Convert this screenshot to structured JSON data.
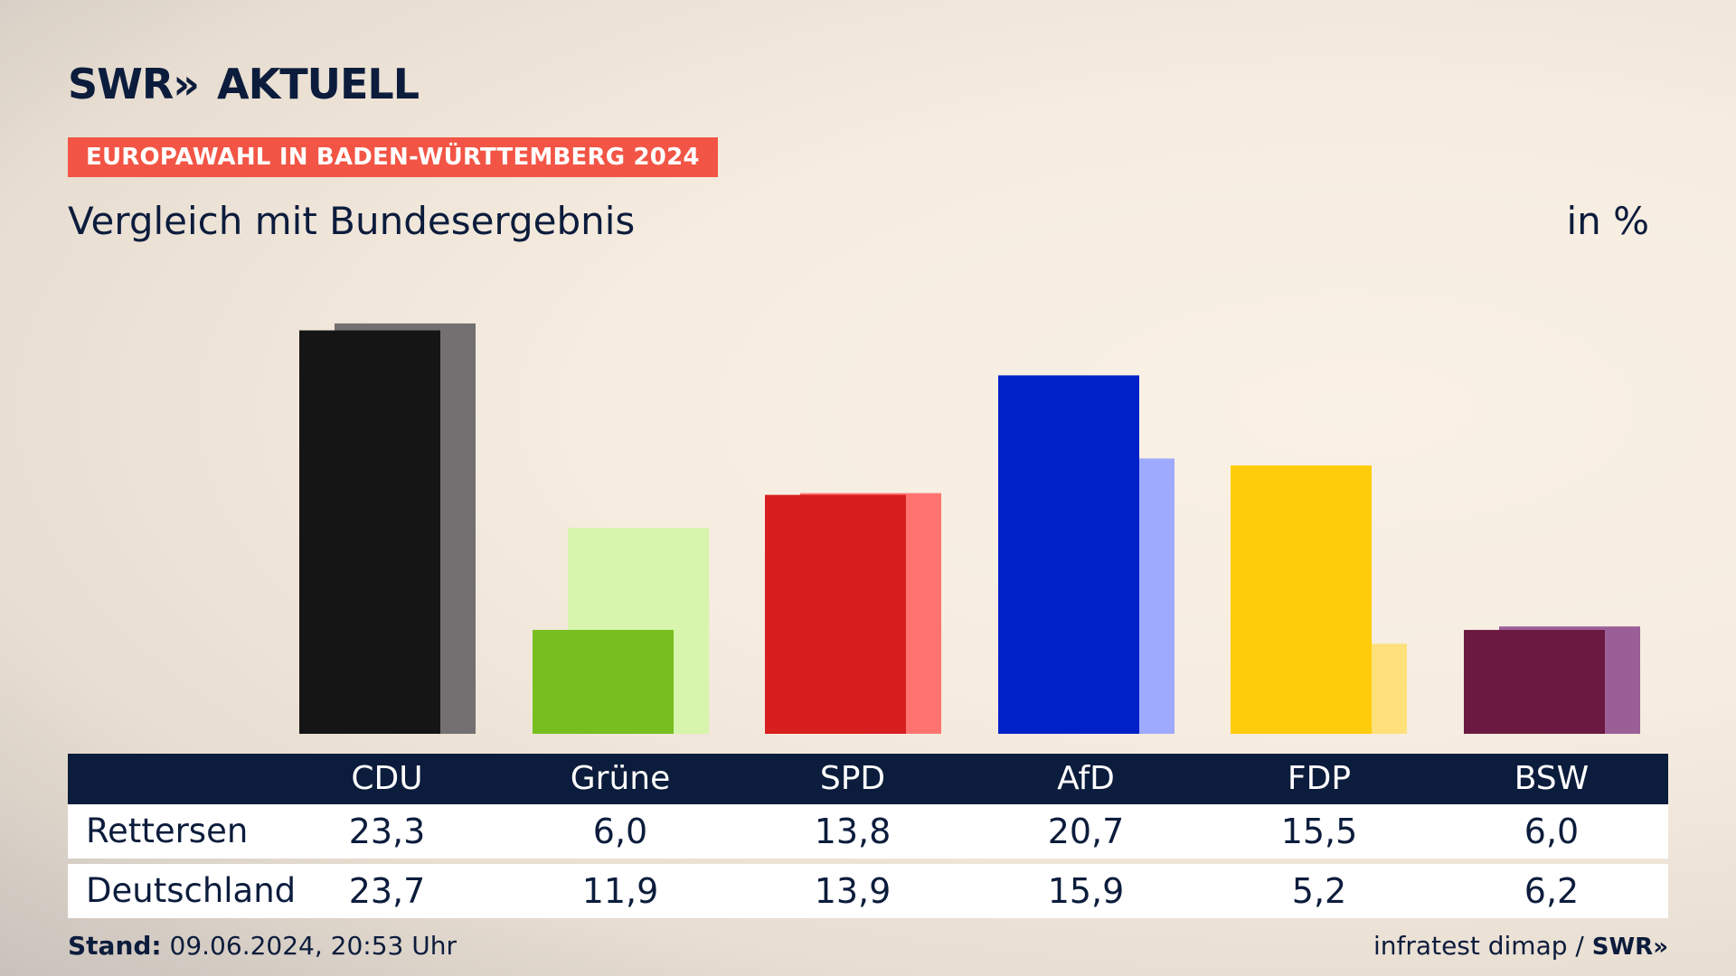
{
  "header": {
    "logo": "SWR» AKTUELL",
    "logo_parts": {
      "swr": "SWR",
      "chevrons": "»",
      "aktuell": "AKTUELL"
    },
    "kicker": "EUROPAWAHL IN BADEN-WÜRTTEMBERG 2024",
    "subtitle": "Vergleich mit Bundesergebnis",
    "unit": "in %"
  },
  "chart_data": {
    "type": "bar",
    "title": "Vergleich mit Bundesergebnis",
    "categories": [
      "CDU",
      "Grüne",
      "SPD",
      "AfD",
      "FDP",
      "BSW"
    ],
    "series": [
      {
        "name": "Rettersen",
        "values": [
          23.3,
          6.0,
          13.8,
          20.7,
          15.5,
          6.0
        ],
        "colors": [
          "#151515",
          "#78be1e",
          "#d81e1e",
          "#0021c8",
          "#ffcc0b",
          "#6a1a40"
        ]
      },
      {
        "name": "Deutschland",
        "values": [
          23.7,
          11.9,
          13.9,
          15.9,
          5.2,
          6.2
        ],
        "colors": [
          "#727070",
          "#d7f5ac",
          "#ff7470",
          "#9eaafd",
          "#ffe07a",
          "#9b5f98"
        ]
      }
    ],
    "ylim": [
      0,
      25
    ],
    "grid": false,
    "legend": "none"
  },
  "table": {
    "columns": [
      "CDU",
      "Grüne",
      "SPD",
      "AfD",
      "FDP",
      "BSW"
    ],
    "rows": [
      {
        "label": "Rettersen",
        "values": [
          "23,3",
          "6,0",
          "13,8",
          "20,7",
          "15,5",
          "6,0"
        ]
      },
      {
        "label": "Deutschland",
        "values": [
          "23,7",
          "11,9",
          "13,9",
          "15,9",
          "5,2",
          "6,2"
        ]
      }
    ]
  },
  "footer": {
    "stand_label": "Stand:",
    "stand_value": "09.06.2024, 20:53 Uhr",
    "source": "infratest dimap /",
    "source_logo": "SWR»"
  }
}
